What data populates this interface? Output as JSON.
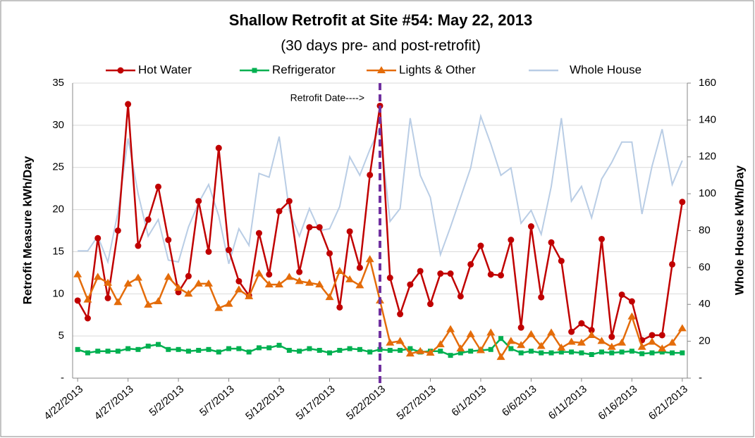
{
  "chart_data": {
    "type": "line",
    "title": "Shallow Retrofit at Site #54: May 22, 2013",
    "subtitle": "(30 days pre- and post-retrofit)",
    "ylabel": "Retrofit Measure kWh/Day",
    "y2label": "Whole House kWh/Day",
    "annotation": {
      "text": "Retrofit  Date---->",
      "x": "5/22/2013",
      "color": "#7030a0"
    },
    "categories": [
      "4/22/2013",
      null,
      null,
      null,
      null,
      "4/27/2013",
      null,
      null,
      null,
      null,
      "5/2/2013",
      null,
      null,
      null,
      null,
      "5/7/2013",
      null,
      null,
      null,
      null,
      "5/12/2013",
      null,
      null,
      null,
      null,
      "5/17/2013",
      null,
      null,
      null,
      null,
      "5/22/2013",
      null,
      null,
      null,
      null,
      "5/27/2013",
      null,
      null,
      null,
      null,
      "6/1/2013",
      null,
      null,
      null,
      null,
      "6/6/2013",
      null,
      null,
      null,
      null,
      "6/11/2013",
      null,
      null,
      null,
      null,
      "6/16/2013",
      null,
      null,
      null,
      null,
      "6/21/2013"
    ],
    "series": [
      {
        "name": "Hot Water",
        "color": "#c00000",
        "marker": "circle",
        "values": [
          9.2,
          7.1,
          16.6,
          9.5,
          17.5,
          32.5,
          15.7,
          18.8,
          22.7,
          16.4,
          10.2,
          12.1,
          21.0,
          15.0,
          27.3,
          15.2,
          11.5,
          9.8,
          17.2,
          12.3,
          19.8,
          21.0,
          12.6,
          17.9,
          17.9,
          14.8,
          8.4,
          17.4,
          13.1,
          24.1,
          32.3,
          11.9,
          7.6,
          11.1,
          12.7,
          8.8,
          12.4,
          12.4,
          9.7,
          13.5,
          15.7,
          12.3,
          12.2,
          16.4,
          6.0,
          18.0,
          9.6,
          16.1,
          13.9,
          5.5,
          6.5,
          5.7,
          16.5,
          4.9,
          9.9,
          9.1,
          4.5,
          5.1,
          5.1,
          13.5,
          20.9
        ]
      },
      {
        "name": "Refrigerator",
        "color": "#00b050",
        "marker": "square",
        "values": [
          3.4,
          3.0,
          3.2,
          3.2,
          3.2,
          3.5,
          3.4,
          3.8,
          4.0,
          3.4,
          3.4,
          3.2,
          3.3,
          3.4,
          3.1,
          3.5,
          3.5,
          3.1,
          3.6,
          3.6,
          3.9,
          3.3,
          3.2,
          3.5,
          3.3,
          3.0,
          3.3,
          3.5,
          3.4,
          3.1,
          3.4,
          3.3,
          3.3,
          3.5,
          3.1,
          3.2,
          3.2,
          2.7,
          3.0,
          3.2,
          3.3,
          3.4,
          4.7,
          3.5,
          3.0,
          3.2,
          3.0,
          3.0,
          3.1,
          3.1,
          3.0,
          2.8,
          3.1,
          3.0,
          3.1,
          3.2,
          2.9,
          3.0,
          3.1,
          3.0,
          3.0
        ]
      },
      {
        "name": "Lights & Other",
        "color": "#e46c0a",
        "marker": "triangle",
        "values": [
          12.3,
          9.3,
          12.0,
          11.3,
          9.0,
          11.2,
          11.9,
          8.7,
          9.1,
          12.0,
          10.7,
          10.0,
          11.2,
          11.2,
          8.3,
          8.8,
          10.5,
          9.7,
          12.4,
          11.1,
          11.1,
          12.0,
          11.5,
          11.3,
          11.1,
          9.6,
          12.7,
          11.7,
          11.0,
          14.1,
          9.2,
          4.2,
          4.4,
          2.9,
          3.2,
          3.0,
          4.0,
          5.8,
          3.5,
          5.2,
          3.3,
          5.4,
          2.5,
          4.4,
          3.9,
          5.2,
          3.8,
          5.4,
          3.6,
          4.3,
          4.2,
          5.1,
          4.4,
          3.7,
          4.2,
          7.3,
          3.7,
          4.3,
          3.5,
          4.2,
          5.9
        ]
      },
      {
        "name": "Whole House",
        "color": "#b9cde5",
        "marker": "none",
        "axis": "y2",
        "values": [
          69,
          69,
          77,
          63,
          90,
          130,
          100,
          77,
          86,
          64,
          63,
          82,
          95,
          105,
          88,
          62,
          81,
          72,
          111,
          109,
          131,
          91,
          77,
          92,
          80,
          81,
          93,
          120,
          110,
          124,
          136,
          85,
          92,
          141,
          110,
          98,
          67,
          82,
          98,
          114,
          142,
          127,
          110,
          114,
          84,
          91,
          78,
          104,
          141,
          96,
          104,
          87,
          108,
          117,
          128,
          128,
          89,
          115,
          135,
          105,
          118
        ]
      }
    ],
    "ylim": [
      0,
      35
    ],
    "yticks": [
      {
        "value": 0,
        "label": "-"
      },
      5,
      10,
      15,
      20,
      25,
      30,
      35
    ],
    "y2lim": [
      0,
      160
    ],
    "y2ticks": [
      {
        "value": 0,
        "label": "-"
      },
      20,
      40,
      60,
      80,
      100,
      120,
      140,
      160
    ],
    "grid": true,
    "legend": "top"
  }
}
